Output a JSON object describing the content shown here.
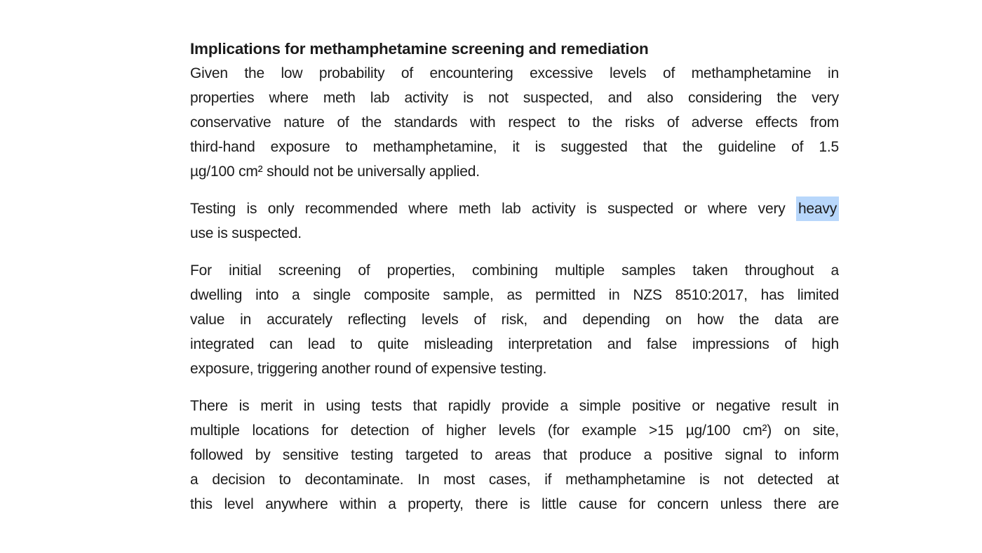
{
  "document": {
    "heading": "Implications for methamphetamine screening and remediation",
    "highlight_color": "#b8d7fb",
    "bullets": [
      {
        "lines": [
          "Given the low probability of encountering excessive levels of methamphetamine in",
          "properties where meth lab activity is not suspected, and also considering the very",
          "conservative nature of the standards with respect to the risks of adverse effects from",
          "third-hand exposure to methamphetamine, it is suggested that the guideline of 1.5",
          "µg/100 cm² should not be universally applied."
        ]
      },
      {
        "line1": {
          "before_highlight": "Testing is only recommended where meth lab activity is suspected or where very",
          "highlight": "heavy"
        },
        "line2": "use is suspected."
      },
      {
        "lines": [
          "For initial screening of properties, combining multiple samples taken throughout a",
          "dwelling into a single composite sample, as permitted in NZS 8510:2017, has limited",
          "value in accurately reflecting levels of risk, and depending on how the data are",
          "integrated can lead to quite misleading interpretation and false impressions of high",
          "exposure, triggering another round of expensive testing."
        ]
      },
      {
        "lines": [
          "There is merit in using tests that rapidly provide a simple positive or negative result in",
          "multiple locations for detection of higher levels (for example >15 µg/100 cm²) on site,",
          "followed by sensitive testing targeted to areas that produce a positive signal to inform",
          "a decision to decontaminate. In most cases, if methamphetamine is not detected at",
          "this level anywhere within a property, there is little cause for concern unless there are"
        ]
      }
    ]
  }
}
